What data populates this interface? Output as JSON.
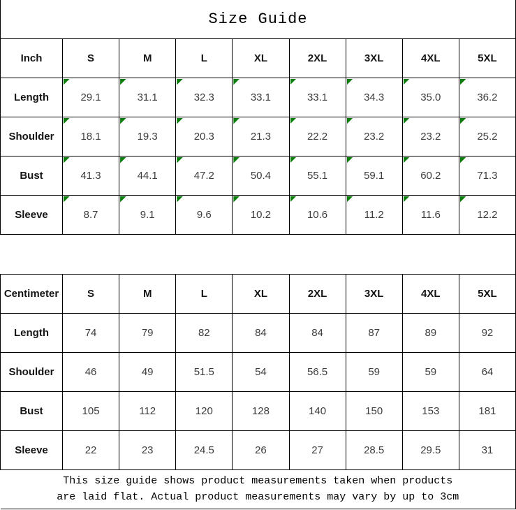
{
  "title": "Size Guide",
  "tables": {
    "inch": {
      "unit_label": "Inch",
      "columns": [
        "S",
        "M",
        "L",
        "XL",
        "2XL",
        "3XL",
        "4XL",
        "5XL"
      ],
      "rows": [
        {
          "label": "Length",
          "values": [
            "29.1",
            "31.1",
            "32.3",
            "33.1",
            "33.1",
            "34.3",
            "35.0",
            "36.2"
          ]
        },
        {
          "label": "Shoulder",
          "values": [
            "18.1",
            "19.3",
            "20.3",
            "21.3",
            "22.2",
            "23.2",
            "23.2",
            "25.2"
          ]
        },
        {
          "label": "Bust",
          "values": [
            "41.3",
            "44.1",
            "47.2",
            "50.4",
            "55.1",
            "59.1",
            "60.2",
            "71.3"
          ]
        },
        {
          "label": "Sleeve",
          "values": [
            "8.7",
            "9.1",
            "9.6",
            "10.2",
            "10.6",
            "11.2",
            "11.6",
            "12.2"
          ]
        }
      ],
      "has_corner_markers": true
    },
    "cm": {
      "unit_label": "Centimeter",
      "columns": [
        "S",
        "M",
        "L",
        "XL",
        "2XL",
        "3XL",
        "4XL",
        "5XL"
      ],
      "rows": [
        {
          "label": "Length",
          "values": [
            "74",
            "79",
            "82",
            "84",
            "84",
            "87",
            "89",
            "92"
          ]
        },
        {
          "label": "Shoulder",
          "values": [
            "46",
            "49",
            "51.5",
            "54",
            "56.5",
            "59",
            "59",
            "64"
          ]
        },
        {
          "label": "Bust",
          "values": [
            "105",
            "112",
            "120",
            "128",
            "140",
            "150",
            "153",
            "181"
          ]
        },
        {
          "label": "Sleeve",
          "values": [
            "22",
            "23",
            "24.5",
            "26",
            "27",
            "28.5",
            "29.5",
            "31"
          ]
        }
      ],
      "has_corner_markers": false
    }
  },
  "footer": {
    "line1": "This size guide shows product measurements taken when products",
    "line2": "are laid flat. Actual product measurements may vary by up to 3cm"
  },
  "colors": {
    "marker_green": "#0a7d0a",
    "border": "#000000",
    "value_text": "#3c3c3c",
    "label_text": "#151515"
  }
}
